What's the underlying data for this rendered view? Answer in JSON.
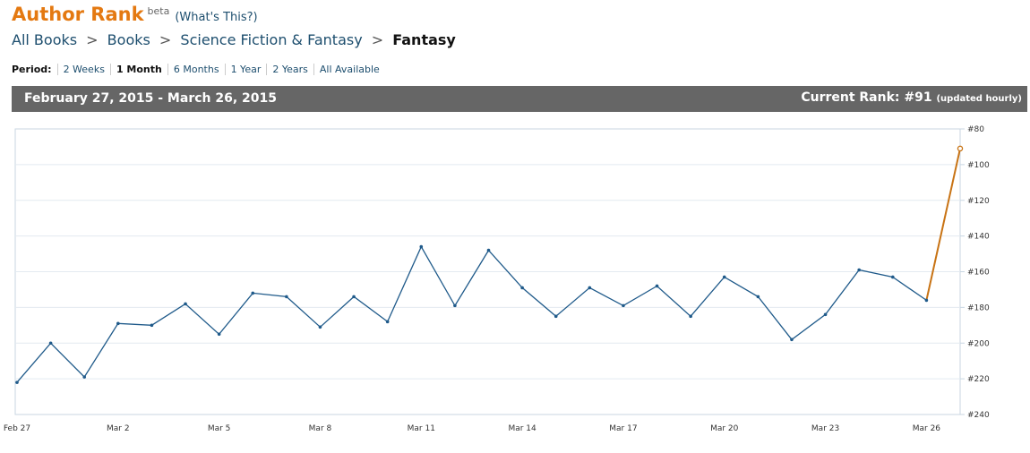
{
  "header": {
    "title": "Author Rank",
    "beta": "beta",
    "whats_this": "(What's This?)"
  },
  "breadcrumb": {
    "items": [
      "All Books",
      "Books",
      "Science Fiction & Fantasy"
    ],
    "current": "Fantasy",
    "separator": ">"
  },
  "period": {
    "label": "Period:",
    "options": [
      "2 Weeks",
      "1 Month",
      "6 Months",
      "1 Year",
      "2 Years",
      "All Available"
    ],
    "active": "1 Month"
  },
  "summary_bar": {
    "date_range": "February 27, 2015 - March 26, 2015",
    "current_rank_label": "Current Rank: #91",
    "updated": "(updated hourly)"
  },
  "colors": {
    "accent": "#e47911",
    "line": "#1f5a8a",
    "highlight_line": "#c87314",
    "bar_bg": "#666666"
  },
  "chart_data": {
    "type": "line",
    "x": [
      "Feb 27",
      "Feb 28",
      "Mar 1",
      "Mar 2",
      "Mar 3",
      "Mar 4",
      "Mar 5",
      "Mar 6",
      "Mar 7",
      "Mar 8",
      "Mar 9",
      "Mar 10",
      "Mar 11",
      "Mar 12",
      "Mar 13",
      "Mar 14",
      "Mar 15",
      "Mar 16",
      "Mar 17",
      "Mar 18",
      "Mar 19",
      "Mar 20",
      "Mar 21",
      "Mar 22",
      "Mar 23",
      "Mar 24",
      "Mar 25",
      "Mar 26",
      "Mar 27"
    ],
    "series": [
      {
        "values": [
          222,
          200,
          219,
          189,
          190,
          178,
          195,
          172,
          174,
          191,
          174,
          188,
          146,
          179,
          148,
          169,
          185,
          169,
          179,
          168,
          185,
          163,
          174,
          198,
          184,
          159,
          163,
          176,
          91
        ]
      }
    ],
    "x_tick_labels": [
      "Feb 27",
      "Mar 2",
      "Mar 5",
      "Mar 8",
      "Mar 11",
      "Mar 14",
      "Mar 17",
      "Mar 20",
      "Mar 23",
      "Mar 26"
    ],
    "y_tick_labels": [
      "#80",
      "#100",
      "#120",
      "#140",
      "#160",
      "#180",
      "#200",
      "#220",
      "#240"
    ],
    "ylim": [
      80,
      240
    ],
    "y_inverted": true,
    "grid": true
  }
}
